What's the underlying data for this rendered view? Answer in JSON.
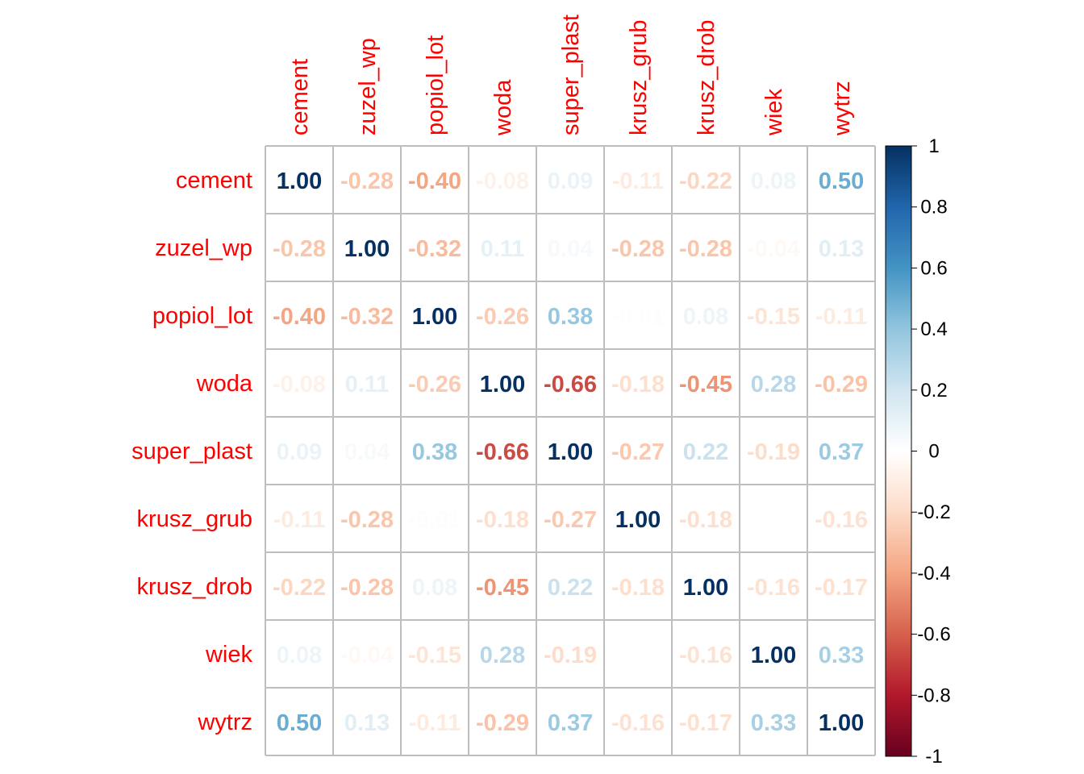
{
  "chart_data": {
    "type": "heatmap",
    "variables": [
      "cement",
      "zuzel_wp",
      "popiol_lot",
      "woda",
      "super_plast",
      "krusz_grub",
      "krusz_drob",
      "wiek",
      "wytrz"
    ],
    "matrix": [
      [
        1.0,
        -0.28,
        -0.4,
        -0.08,
        0.09,
        -0.11,
        -0.22,
        0.08,
        0.5
      ],
      [
        -0.28,
        1.0,
        -0.32,
        0.11,
        0.04,
        -0.28,
        -0.28,
        -0.04,
        0.13
      ],
      [
        -0.4,
        -0.32,
        1.0,
        -0.26,
        0.38,
        -0.01,
        0.08,
        -0.15,
        -0.11
      ],
      [
        -0.08,
        0.11,
        -0.26,
        1.0,
        -0.66,
        -0.18,
        -0.45,
        0.28,
        -0.29
      ],
      [
        0.09,
        0.04,
        0.38,
        -0.66,
        1.0,
        -0.27,
        0.22,
        -0.19,
        0.37
      ],
      [
        -0.11,
        -0.28,
        -0.01,
        -0.18,
        -0.27,
        1.0,
        -0.18,
        0.0,
        -0.16
      ],
      [
        -0.22,
        -0.28,
        0.08,
        -0.45,
        0.22,
        -0.18,
        1.0,
        -0.16,
        -0.17
      ],
      [
        0.08,
        -0.04,
        -0.15,
        0.28,
        -0.19,
        0.0,
        -0.16,
        1.0,
        0.33
      ],
      [
        0.5,
        0.13,
        -0.11,
        -0.29,
        0.37,
        -0.16,
        -0.17,
        0.33,
        1.0
      ]
    ],
    "colorbar": {
      "ticks": [
        "1",
        "0.8",
        "0.6",
        "0.4",
        "0.2",
        "0",
        "-0.2",
        "-0.4",
        "-0.6",
        "-0.8",
        "-1"
      ],
      "range": [
        -1,
        1
      ]
    },
    "label_color": "#ff0000",
    "grid_color": "#bebebe",
    "palette": [
      "#67001f",
      "#b2182b",
      "#d6604d",
      "#f4a582",
      "#fddbc7",
      "#ffffff",
      "#d1e5f0",
      "#92c5de",
      "#4393c3",
      "#2166ac",
      "#053061"
    ]
  }
}
